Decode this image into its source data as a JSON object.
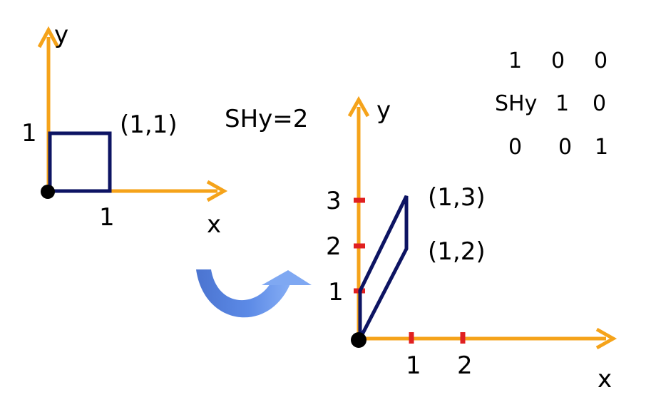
{
  "left": {
    "y_label": "y",
    "x_label": "x",
    "one_y": "1",
    "one_x": "1",
    "corner_label": "(1,1)"
  },
  "shear_label": "SHy=2",
  "right": {
    "y_label": "y",
    "x_label": "x",
    "y_ticks": [
      "1",
      "2",
      "3"
    ],
    "x_ticks": [
      "1",
      "2"
    ],
    "point_top": "(1,3)",
    "point_mid": "(1,2)"
  },
  "matrix": [
    [
      "1",
      "0",
      "0"
    ],
    [
      "SHy",
      "1",
      "0"
    ],
    [
      "0",
      "0",
      "1"
    ]
  ],
  "colors": {
    "axis": "#F5A31A",
    "shape": "#0D1463",
    "tick": "#E02020",
    "arrow_dark": "#4F7CD8",
    "arrow_light": "#7FA8F2"
  }
}
